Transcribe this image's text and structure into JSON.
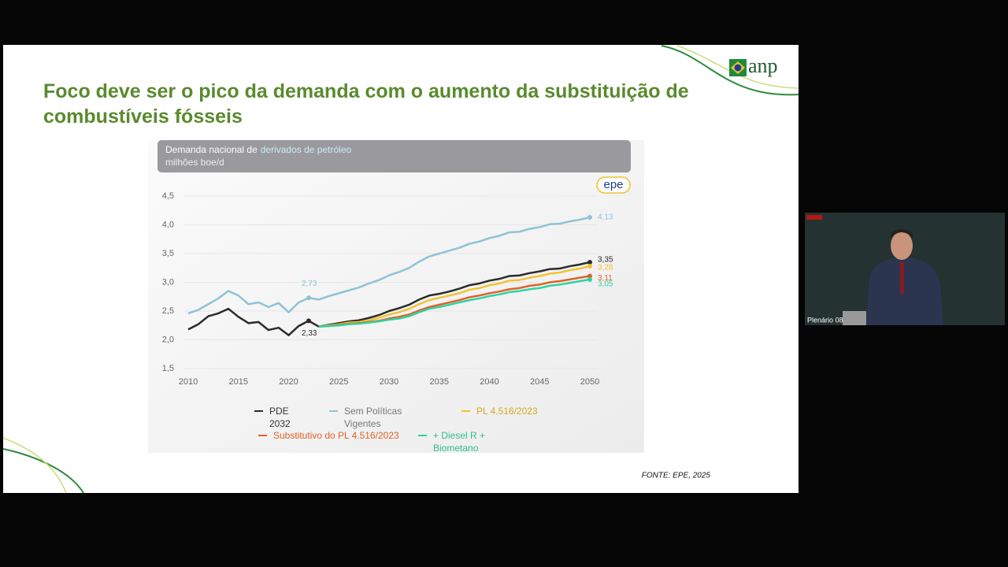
{
  "slide": {
    "title": "Foco deve ser o pico da demanda com o aumento da substituição de combustíveis fósseis",
    "logo": "anp",
    "source": "FONTE: EPE, 2025"
  },
  "video": {
    "label": "Plenário 08"
  },
  "chart_data": {
    "type": "line",
    "title": "Demanda nacional de",
    "title_highlight": "derivados de petróleo",
    "subtitle": "milhões boe/d",
    "logo": "epe",
    "x": [
      2010,
      2011,
      2012,
      2013,
      2014,
      2015,
      2016,
      2017,
      2018,
      2019,
      2020,
      2021,
      2022,
      2023,
      2024,
      2025,
      2026,
      2027,
      2028,
      2029,
      2030,
      2031,
      2032,
      2033,
      2034,
      2035,
      2036,
      2037,
      2038,
      2039,
      2040,
      2041,
      2042,
      2043,
      2044,
      2045,
      2046,
      2047,
      2048,
      2049,
      2050
    ],
    "xlim": [
      2010,
      2050
    ],
    "xticks": [
      2010,
      2015,
      2020,
      2025,
      2030,
      2035,
      2040,
      2045,
      2050
    ],
    "ylim": [
      1.5,
      4.5
    ],
    "yticks": [
      {
        "value": 1.5,
        "label": "1,5"
      },
      {
        "value": 2.0,
        "label": "2,0"
      },
      {
        "value": 2.5,
        "label": "2,5"
      },
      {
        "value": 3.0,
        "label": "3,0"
      },
      {
        "value": 3.5,
        "label": "3,5"
      },
      {
        "value": 4.0,
        "label": "4,0"
      },
      {
        "value": 4.5,
        "label": "4,5"
      }
    ],
    "grid": true,
    "series": [
      {
        "name": "PDE 2032",
        "color": "#2b2b2b",
        "values": [
          2.18,
          2.27,
          2.41,
          2.46,
          2.54,
          2.4,
          2.29,
          2.31,
          2.17,
          2.21,
          2.08,
          2.24,
          2.33,
          2.23,
          2.26,
          2.29,
          2.32,
          2.34,
          2.38,
          2.43,
          2.5,
          2.55,
          2.61,
          2.7,
          2.77,
          2.8,
          2.84,
          2.89,
          2.95,
          2.98,
          3.03,
          3.06,
          3.11,
          3.12,
          3.16,
          3.19,
          3.23,
          3.24,
          3.28,
          3.31,
          3.35
        ]
      },
      {
        "name": "Sem Políticas Vigentes",
        "color": "#8ec3d6",
        "values": [
          2.46,
          2.52,
          2.62,
          2.72,
          2.85,
          2.77,
          2.62,
          2.65,
          2.57,
          2.64,
          2.48,
          2.65,
          2.73,
          2.7,
          2.76,
          2.81,
          2.86,
          2.91,
          2.98,
          3.04,
          3.12,
          3.18,
          3.25,
          3.36,
          3.45,
          3.5,
          3.55,
          3.6,
          3.67,
          3.71,
          3.77,
          3.81,
          3.87,
          3.88,
          3.93,
          3.96,
          4.01,
          4.02,
          4.06,
          4.09,
          4.13
        ]
      },
      {
        "name": "PL 4.516/2023",
        "color": "#f2c232",
        "values": [
          null,
          null,
          null,
          null,
          null,
          null,
          null,
          null,
          null,
          null,
          null,
          null,
          null,
          2.23,
          2.25,
          2.27,
          2.3,
          2.31,
          2.34,
          2.38,
          2.44,
          2.48,
          2.54,
          2.62,
          2.69,
          2.73,
          2.77,
          2.81,
          2.87,
          2.9,
          2.95,
          2.98,
          3.03,
          3.04,
          3.08,
          3.11,
          3.15,
          3.17,
          3.21,
          3.24,
          3.28
        ]
      },
      {
        "name": "Substitutivo do PL 4.516/2023",
        "color": "#e0622a",
        "values": [
          null,
          null,
          null,
          null,
          null,
          null,
          null,
          null,
          null,
          null,
          null,
          null,
          null,
          2.23,
          2.24,
          2.26,
          2.28,
          2.29,
          2.31,
          2.33,
          2.37,
          2.4,
          2.44,
          2.51,
          2.57,
          2.61,
          2.65,
          2.69,
          2.74,
          2.77,
          2.81,
          2.84,
          2.88,
          2.9,
          2.94,
          2.96,
          3.0,
          3.02,
          3.05,
          3.08,
          3.11
        ]
      },
      {
        "name": "+ Diesel R + Biometano",
        "color": "#2dd4a0",
        "values": [
          null,
          null,
          null,
          null,
          null,
          null,
          null,
          null,
          null,
          null,
          null,
          null,
          null,
          2.23,
          2.24,
          2.25,
          2.27,
          2.28,
          2.3,
          2.32,
          2.35,
          2.37,
          2.41,
          2.48,
          2.54,
          2.57,
          2.61,
          2.65,
          2.69,
          2.72,
          2.76,
          2.79,
          2.83,
          2.85,
          2.88,
          2.9,
          2.94,
          2.96,
          2.99,
          3.02,
          3.05
        ]
      }
    ],
    "annotations": [
      {
        "x": 2022,
        "value": 2.73,
        "label": "2,73",
        "color": "#8ec3d6"
      },
      {
        "x": 2022,
        "value": 2.33,
        "label": "2,33",
        "color": "#2b2b2b"
      },
      {
        "x": 2050,
        "value": 4.13,
        "label": "4,13",
        "color": "#8ec3d6"
      },
      {
        "x": 2050,
        "value": 3.35,
        "label": "3,35",
        "color": "#2b2b2b"
      },
      {
        "x": 2050,
        "value": 3.28,
        "label": "3,28",
        "color": "#f2c232"
      },
      {
        "x": 2050,
        "value": 3.11,
        "label": "3,11",
        "color": "#e0622a"
      },
      {
        "x": 2050,
        "value": 3.05,
        "label": "3,05",
        "color": "#2dd4a0"
      }
    ]
  }
}
